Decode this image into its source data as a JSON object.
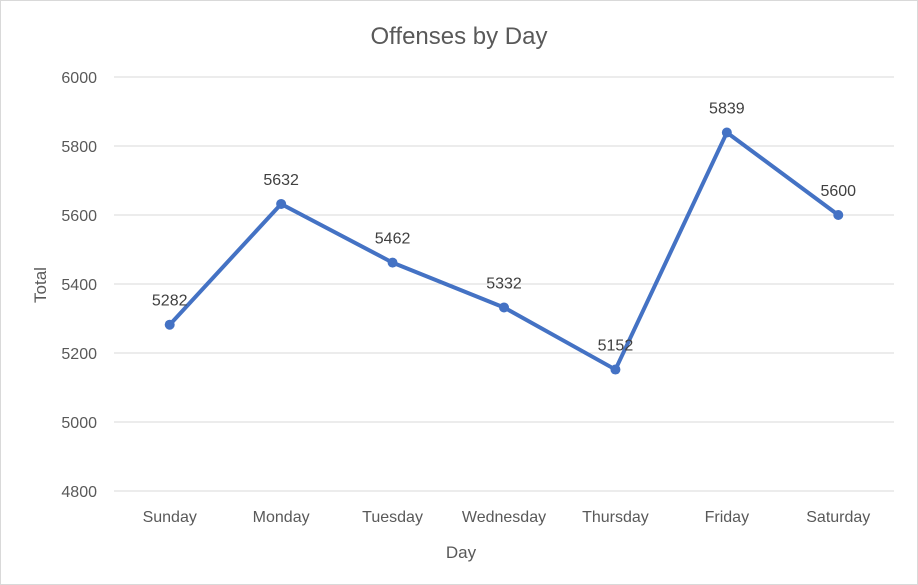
{
  "chart_data": {
    "type": "line",
    "title": "Offenses by Day",
    "xlabel": "Day",
    "ylabel": "Total",
    "categories": [
      "Sunday",
      "Monday",
      "Tuesday",
      "Wednesday",
      "Thursday",
      "Friday",
      "Saturday"
    ],
    "series": [
      {
        "values": [
          5282,
          5632,
          5462,
          5332,
          5152,
          5839,
          5600
        ],
        "color": "#4472c4",
        "data_labels": [
          "5282",
          "5632",
          "5462",
          "5332",
          "5152",
          "5839",
          "5600"
        ]
      }
    ],
    "ylim": [
      4800,
      6000
    ],
    "yticks": [
      4800,
      5000,
      5200,
      5400,
      5600,
      5800,
      6000
    ],
    "grid": true,
    "legend": "none"
  }
}
